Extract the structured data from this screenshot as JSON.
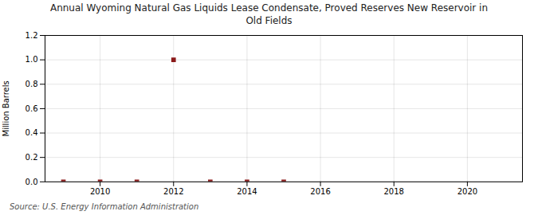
{
  "chart_data": {
    "type": "scatter",
    "title": "Annual Wyoming Natural Gas Liquids Lease Condensate, Proved Reserves New Reservoir in\nOld Fields",
    "ylabel": "Million Barrels",
    "annotations": [
      "Source: U.S. Energy Information Administration"
    ],
    "x": [
      2009,
      2010,
      2011,
      2012,
      2013,
      2014,
      2015
    ],
    "values": [
      0.0,
      0.0,
      0.0,
      1.0,
      0.0,
      0.0,
      0.0
    ],
    "color": "#8b1a1a",
    "marker": "square",
    "xlim": [
      2008.5,
      2021.5
    ],
    "xticks": [
      2010,
      2012,
      2014,
      2016,
      2018,
      2020
    ],
    "ylim": [
      0.0,
      1.2
    ],
    "yticks": [
      {
        "value": 0.0,
        "label": "0.0"
      },
      0.2,
      0.4,
      0.6,
      0.8,
      {
        "value": 1.0,
        "label": "1.0"
      },
      1.2
    ],
    "grid": true
  }
}
